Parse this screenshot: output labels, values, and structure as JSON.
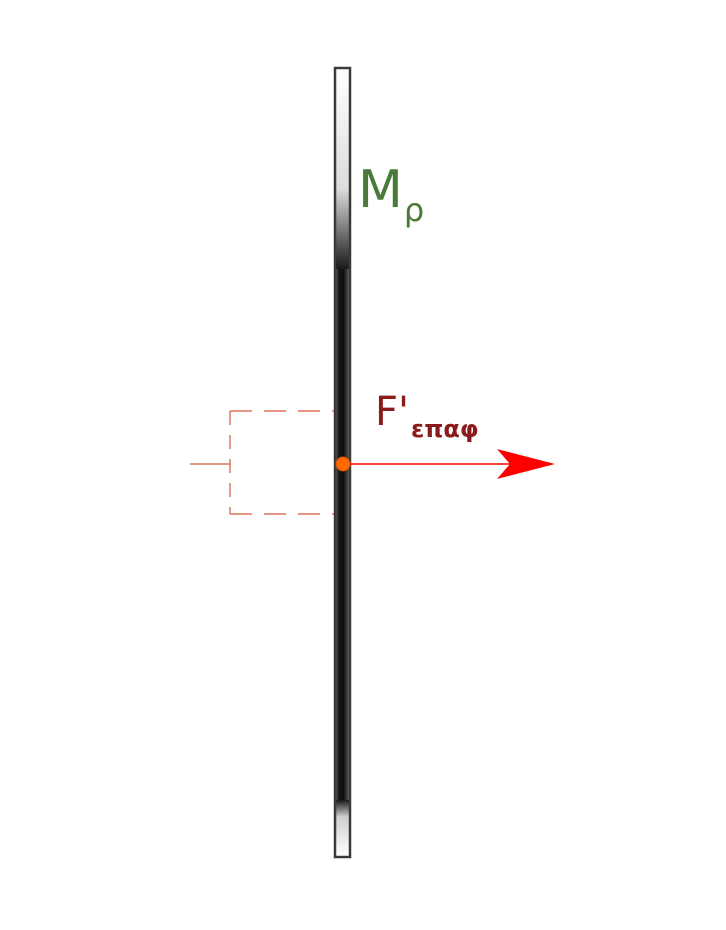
{
  "labels": {
    "mass_main": "M",
    "mass_sub": "ρ",
    "force_main": "F'",
    "force_sub": "επαφ"
  },
  "colors": {
    "mass_label": "#4a7a3a",
    "force_label": "#8b1a1a",
    "force_arrow": "#ff0000",
    "contact_point": "#ff6a00",
    "dashed_bracket": "#d9573a",
    "rod_outline": "#3a3a3a",
    "rod_fill": "#1a1a1a"
  }
}
